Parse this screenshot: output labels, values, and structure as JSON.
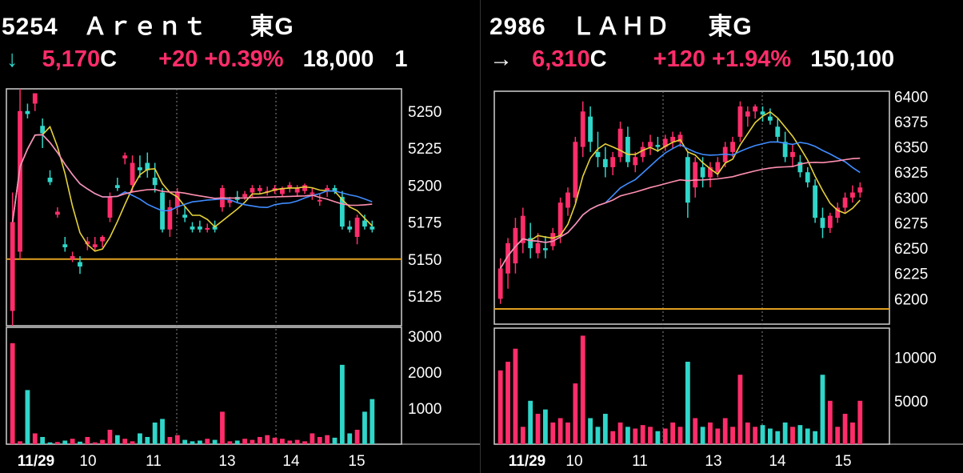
{
  "panels": [
    {
      "code": "5254",
      "name": "Ａｒｅｎｔ",
      "market": "東G",
      "arrow": "↓",
      "price": "5,170",
      "price_flag": "C",
      "change": "+20",
      "change_pct": "+0.39%",
      "volume": "18,000",
      "volume_extra": "1"
    },
    {
      "code": "2986",
      "name": "ＬＡＨＤ",
      "market": "東G",
      "arrow": "→",
      "price": "6,310",
      "price_flag": "C",
      "change": "+120",
      "change_pct": "+1.94%",
      "volume": "150,100",
      "volume_extra": ""
    }
  ],
  "colors": {
    "up": "#ff2d6a",
    "down": "#2fd6c9",
    "ma_short": "#e6d23a",
    "ma_mid": "#3f8cff",
    "ma_long": "#ff8fb0",
    "hline": "#e0a020",
    "grid": "#888888",
    "frame": "#cfcfcf"
  },
  "chart_data": [
    {
      "type": "candlestick",
      "x_tick_labels": [
        "11/29",
        "10",
        "11",
        "13",
        "14",
        "15"
      ],
      "y_ticks": [
        5125,
        5150,
        5175,
        5200,
        5225,
        5250
      ],
      "ylim": [
        5105,
        5265
      ],
      "volume_ticks": [
        1000,
        2000,
        3000
      ],
      "volume_ylim": [
        0,
        3150
      ],
      "reference_line": 5150,
      "candles": [
        [
          5115,
          5195,
          5105,
          5175
        ],
        [
          5155,
          5265,
          5150,
          5250
        ],
        [
          5250,
          5255,
          5245,
          5248
        ],
        [
          5255,
          5262,
          5250,
          5262
        ],
        [
          5240,
          5245,
          5225,
          5235
        ],
        [
          5205,
          5210,
          5200,
          5202
        ],
        [
          5180,
          5185,
          5178,
          5182
        ],
        [
          5160,
          5165,
          5155,
          5158
        ],
        [
          5150,
          5155,
          5148,
          5152
        ],
        [
          5148,
          5152,
          5140,
          5145
        ],
        [
          5160,
          5165,
          5156,
          5162
        ],
        [
          5158,
          5165,
          5155,
          5160
        ],
        [
          5162,
          5166,
          5158,
          5165
        ],
        [
          5178,
          5195,
          5175,
          5192
        ],
        [
          5200,
          5205,
          5196,
          5198
        ],
        [
          5218,
          5222,
          5214,
          5220
        ],
        [
          5200,
          5220,
          5195,
          5215
        ],
        [
          5212,
          5220,
          5205,
          5210
        ],
        [
          5215,
          5222,
          5205,
          5210
        ],
        [
          5205,
          5215,
          5195,
          5200
        ],
        [
          5195,
          5198,
          5168,
          5170
        ],
        [
          5170,
          5190,
          5165,
          5185
        ],
        [
          5185,
          5198,
          5180,
          5195
        ],
        [
          5180,
          5185,
          5175,
          5178
        ],
        [
          5172,
          5175,
          5168,
          5170
        ],
        [
          5172,
          5176,
          5168,
          5170
        ],
        [
          5170,
          5174,
          5168,
          5171
        ],
        [
          5172,
          5176,
          5168,
          5170
        ],
        [
          5185,
          5200,
          5182,
          5198
        ],
        [
          5188,
          5192,
          5185,
          5190
        ],
        [
          5192,
          5196,
          5188,
          5190
        ],
        [
          5192,
          5196,
          5190,
          5194
        ],
        [
          5195,
          5200,
          5192,
          5198
        ],
        [
          5196,
          5200,
          5194,
          5198
        ],
        [
          5195,
          5199,
          5193,
          5196
        ],
        [
          5196,
          5200,
          5194,
          5198
        ],
        [
          5194,
          5199,
          5192,
          5198
        ],
        [
          5198,
          5202,
          5195,
          5200
        ],
        [
          5195,
          5200,
          5192,
          5198
        ],
        [
          5196,
          5201,
          5194,
          5200
        ],
        [
          5194,
          5198,
          5190,
          5195
        ],
        [
          5190,
          5194,
          5186,
          5190
        ],
        [
          5196,
          5200,
          5192,
          5198
        ],
        [
          5198,
          5200,
          5194,
          5196
        ],
        [
          5192,
          5196,
          5170,
          5172
        ],
        [
          5172,
          5176,
          5168,
          5170
        ],
        [
          5165,
          5180,
          5160,
          5178
        ],
        [
          5176,
          5180,
          5170,
          5172
        ],
        [
          5172,
          5176,
          5168,
          5170
        ]
      ],
      "volume": [
        2800,
        80,
        1500,
        300,
        200,
        50,
        60,
        100,
        150,
        70,
        200,
        50,
        120,
        400,
        250,
        150,
        80,
        300,
        200,
        600,
        700,
        200,
        250,
        120,
        80,
        100,
        150,
        120,
        900,
        80,
        100,
        150,
        120,
        200,
        250,
        180,
        150,
        100,
        120,
        80,
        300,
        200,
        250,
        180,
        2200,
        300,
        400,
        900,
        1250
      ]
    },
    {
      "type": "candlestick",
      "x_tick_labels": [
        "11/29",
        "10",
        "11",
        "13",
        "14",
        "15"
      ],
      "y_ticks": [
        6200,
        6225,
        6250,
        6275,
        6300,
        6325,
        6350,
        6375,
        6400
      ],
      "ylim": [
        6175,
        6405
      ],
      "volume_ticks": [
        5000,
        10000
      ],
      "volume_ylim": [
        0,
        13000
      ],
      "reference_line": 6190,
      "candles": [
        [
          6200,
          6240,
          6195,
          6230
        ],
        [
          6225,
          6260,
          6210,
          6255
        ],
        [
          6235,
          6280,
          6225,
          6270
        ],
        [
          6255,
          6290,
          6245,
          6282
        ],
        [
          6260,
          6275,
          6240,
          6250
        ],
        [
          6245,
          6265,
          6240,
          6255
        ],
        [
          6250,
          6262,
          6240,
          6248
        ],
        [
          6252,
          6270,
          6248,
          6265
        ],
        [
          6262,
          6300,
          6255,
          6295
        ],
        [
          6290,
          6310,
          6282,
          6305
        ],
        [
          6300,
          6360,
          6295,
          6355
        ],
        [
          6350,
          6395,
          6340,
          6385
        ],
        [
          6380,
          6390,
          6345,
          6355
        ],
        [
          6345,
          6365,
          6330,
          6340
        ],
        [
          6338,
          6350,
          6320,
          6330
        ],
        [
          6330,
          6345,
          6322,
          6340
        ],
        [
          6340,
          6375,
          6335,
          6368
        ],
        [
          6360,
          6370,
          6330,
          6335
        ],
        [
          6332,
          6345,
          6325,
          6340
        ],
        [
          6340,
          6355,
          6335,
          6350
        ],
        [
          6350,
          6362,
          6342,
          6355
        ],
        [
          6352,
          6360,
          6345,
          6350
        ],
        [
          6350,
          6362,
          6346,
          6358
        ],
        [
          6355,
          6365,
          6348,
          6360
        ],
        [
          6355,
          6365,
          6350,
          6362
        ],
        [
          6340,
          6345,
          6280,
          6295
        ],
        [
          6310,
          6340,
          6300,
          6335
        ],
        [
          6330,
          6340,
          6310,
          6320
        ],
        [
          6320,
          6335,
          6310,
          6330
        ],
        [
          6325,
          6340,
          6320,
          6335
        ],
        [
          6335,
          6355,
          6330,
          6350
        ],
        [
          6345,
          6360,
          6340,
          6355
        ],
        [
          6360,
          6395,
          6355,
          6390
        ],
        [
          6380,
          6390,
          6370,
          6385
        ],
        [
          6385,
          6392,
          6378,
          6390
        ],
        [
          6385,
          6390,
          6375,
          6382
        ],
        [
          6380,
          6388,
          6372,
          6376
        ],
        [
          6370,
          6378,
          6355,
          6360
        ],
        [
          6355,
          6365,
          6335,
          6340
        ],
        [
          6340,
          6352,
          6330,
          6345
        ],
        [
          6335,
          6342,
          6320,
          6325
        ],
        [
          6325,
          6330,
          6310,
          6315
        ],
        [
          6312,
          6318,
          6275,
          6280
        ],
        [
          6280,
          6290,
          6260,
          6270
        ],
        [
          6270,
          6285,
          6265,
          6282
        ],
        [
          6280,
          6295,
          6275,
          6290
        ],
        [
          6290,
          6305,
          6285,
          6300
        ],
        [
          6300,
          6312,
          6295,
          6305
        ],
        [
          6305,
          6315,
          6300,
          6310
        ]
      ],
      "volume": [
        8500,
        9500,
        11000,
        2000,
        5000,
        3500,
        4000,
        2500,
        3000,
        2500,
        7000,
        12500,
        3000,
        2000,
        3500,
        1500,
        2500,
        2000,
        1800,
        2200,
        2000,
        1500,
        1800,
        2500,
        2000,
        9500,
        3000,
        2000,
        2500,
        1800,
        3000,
        2000,
        8000,
        2500,
        2000,
        2200,
        1800,
        1500,
        2500,
        2000,
        2200,
        1800,
        1500,
        8000,
        5000,
        2000,
        3500,
        2500,
        5000
      ]
    }
  ]
}
